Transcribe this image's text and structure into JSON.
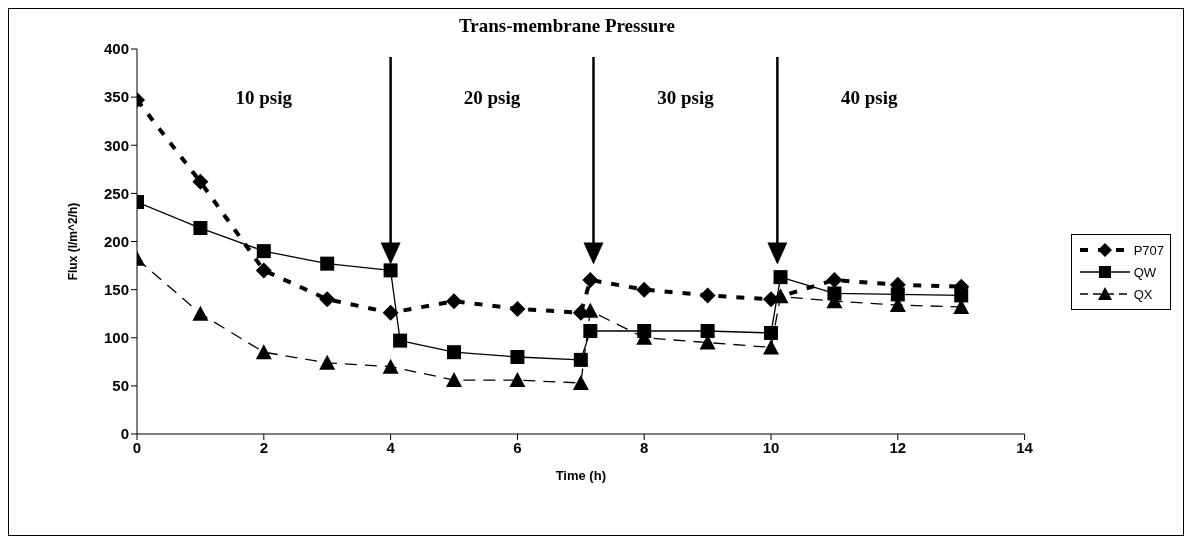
{
  "chart_data": {
    "type": "line",
    "title": "Trans-membrane Pressure",
    "xlabel": "Time (h)",
    "ylabel": "Flux (l/m^2/h)",
    "xlim": [
      0,
      14
    ],
    "xticks": [
      0,
      2,
      4,
      6,
      8,
      10,
      12,
      14
    ],
    "ylim": [
      0,
      400
    ],
    "yticks": [
      0,
      50,
      100,
      150,
      200,
      250,
      300,
      350,
      400
    ],
    "legend": "right",
    "series": [
      {
        "name": "P707",
        "color": "#000000",
        "marker": "diamond",
        "line_style": "dotted",
        "x": [
          0,
          1,
          2,
          3,
          4,
          5,
          6,
          7,
          7.15,
          8,
          9,
          10,
          11,
          12,
          13
        ],
        "values": [
          347,
          262,
          170,
          140,
          126,
          138,
          130,
          126,
          160,
          150,
          144,
          140,
          160,
          155,
          153
        ]
      },
      {
        "name": "QW",
        "color": "#000000",
        "marker": "square",
        "line_style": "solid",
        "x": [
          0,
          1,
          2,
          3,
          4,
          4.15,
          5,
          6,
          7,
          7.15,
          8,
          9,
          10,
          10.15,
          11,
          12,
          13
        ],
        "values": [
          241,
          214,
          190,
          177,
          170,
          97,
          85,
          80,
          77,
          107,
          107,
          107,
          105,
          163,
          146,
          145,
          144
        ]
      },
      {
        "name": "QX",
        "color": "#000000",
        "marker": "triangle",
        "line_style": "dashed",
        "x": [
          0,
          1,
          2,
          3,
          4,
          5,
          6,
          7,
          7.15,
          8,
          9,
          10,
          10.15,
          11,
          12,
          13
        ],
        "values": [
          182,
          125,
          85,
          74,
          70,
          56,
          56,
          53,
          128,
          100,
          95,
          90,
          143,
          138,
          134,
          132
        ]
      }
    ],
    "ref_lines": [
      {
        "axis": "x",
        "value": 4,
        "color": "#000000"
      },
      {
        "axis": "x",
        "value": 7.2,
        "color": "#000000"
      },
      {
        "axis": "x",
        "value": 10.1,
        "color": "#000000"
      }
    ],
    "annotations": [
      "10 psig",
      "20 psig",
      "30 psig",
      "40 psig"
    ]
  }
}
